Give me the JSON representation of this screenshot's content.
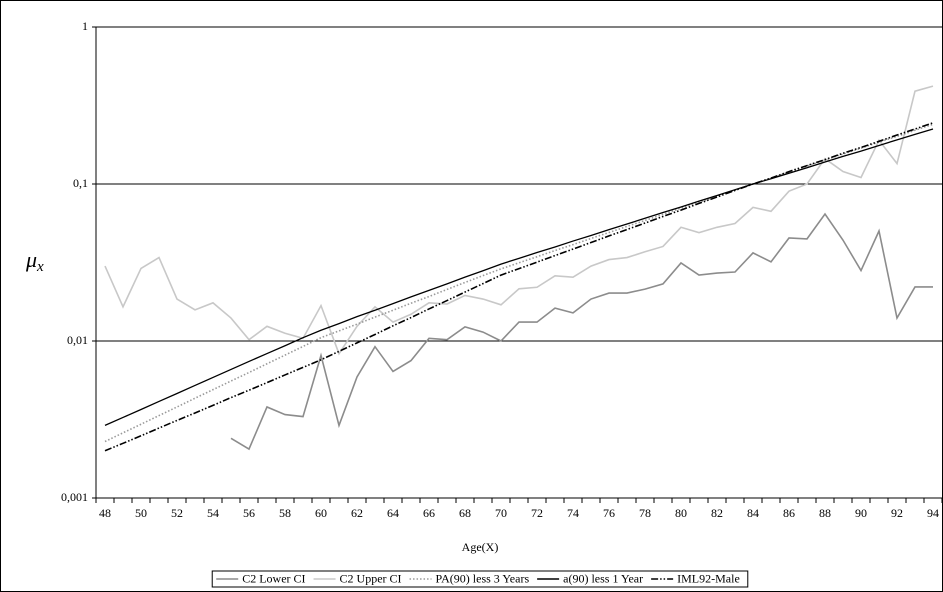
{
  "chart_data": {
    "type": "line",
    "xlabel": "Age(X)",
    "ylabel": "μ",
    "ylabel_subscript": "x",
    "categories": [
      48,
      null,
      50,
      null,
      52,
      null,
      54,
      null,
      56,
      null,
      58,
      null,
      60,
      null,
      62,
      null,
      64,
      null,
      66,
      null,
      68,
      null,
      70,
      null,
      72,
      null,
      74,
      null,
      76,
      null,
      78,
      null,
      80,
      null,
      82,
      null,
      84,
      null,
      86,
      null,
      88,
      null,
      90,
      null,
      92,
      null,
      94
    ],
    "log_y": true,
    "ylim": [
      0.001,
      1
    ],
    "yticks": [
      {
        "value": 0.001,
        "label": "0,001"
      },
      {
        "value": 0.01,
        "label": "0,01"
      },
      {
        "value": 0.1,
        "label": "0,1"
      },
      1
    ],
    "grid": true,
    "legend": "bottom",
    "series": [
      {
        "name": "C2 Lower CI",
        "color": "#8c8c8c",
        "dash": "solid",
        "values": [
          null,
          null,
          null,
          null,
          null,
          null,
          null,
          0.0024,
          0.00205,
          0.0038,
          0.0034,
          0.0033,
          0.0081,
          0.0029,
          0.0059,
          0.0092,
          0.0064,
          0.0075,
          0.0104,
          0.0102,
          0.0123,
          0.0114,
          0.01,
          0.0132,
          0.0132,
          0.0162,
          0.0151,
          0.0185,
          0.0202,
          0.0202,
          0.0214,
          0.0231,
          0.0314,
          0.0263,
          0.0271,
          0.0275,
          0.0364,
          0.0319,
          0.0453,
          0.0447,
          0.0644,
          0.0439,
          0.0281,
          0.0502,
          0.014,
          0.0221,
          0.0221
        ]
      },
      {
        "name": "C2 Upper CI",
        "color": "#c8c8c8",
        "dash": "solid",
        "values": [
          0.03,
          0.0165,
          0.029,
          0.034,
          0.0185,
          0.0158,
          0.0175,
          0.014,
          0.0102,
          0.0124,
          0.0112,
          0.0104,
          0.0168,
          0.0083,
          0.0124,
          0.0165,
          0.0132,
          0.0148,
          0.0175,
          0.0172,
          0.0195,
          0.0185,
          0.017,
          0.0215,
          0.022,
          0.026,
          0.0255,
          0.03,
          0.033,
          0.034,
          0.037,
          0.04,
          0.053,
          0.049,
          0.053,
          0.056,
          0.071,
          0.067,
          0.09,
          0.1,
          0.145,
          0.12,
          0.11,
          0.19,
          0.135,
          0.39,
          0.42
        ]
      },
      {
        "name": "PA(90) less 3 Years",
        "color": "#9a9a9a",
        "dash": "dotted",
        "values": [
          0.00229,
          0.0026,
          0.00295,
          0.00335,
          0.0038,
          0.00432,
          0.0049,
          0.00556,
          0.0063,
          0.00716,
          0.00813,
          0.00923,
          0.0105,
          0.0116,
          0.0128,
          0.0142,
          0.0157,
          0.0174,
          0.0192,
          0.0213,
          0.0236,
          0.0261,
          0.0288,
          0.0315,
          0.0344,
          0.0377,
          0.0411,
          0.045,
          0.0491,
          0.0537,
          0.0586,
          0.0641,
          0.0701,
          0.0766,
          0.0837,
          0.0914,
          0.1,
          0.109,
          0.119,
          0.13,
          0.142,
          0.155,
          0.169,
          0.185,
          0.201,
          0.22,
          0.24
        ]
      },
      {
        "name": "a(90) less 1 Year",
        "color": "#000000",
        "dash": "solid",
        "values": [
          0.0029,
          0.00326,
          0.00366,
          0.00412,
          0.00463,
          0.00521,
          0.00586,
          0.00659,
          0.00741,
          0.00832,
          0.00933,
          0.0105,
          0.0117,
          0.0129,
          0.0143,
          0.0157,
          0.0173,
          0.0191,
          0.021,
          0.0231,
          0.0255,
          0.028,
          0.0309,
          0.0336,
          0.0366,
          0.0397,
          0.0433,
          0.047,
          0.0512,
          0.0556,
          0.0605,
          0.0658,
          0.0714,
          0.0778,
          0.0845,
          0.092,
          0.1,
          0.108,
          0.117,
          0.127,
          0.138,
          0.15,
          0.162,
          0.176,
          0.191,
          0.207,
          0.224
        ]
      },
      {
        "name": "IML92-Male",
        "color": "#000000",
        "dash": "dash-dot",
        "values": [
          0.002,
          0.00223,
          0.00249,
          0.00279,
          0.00312,
          0.00348,
          0.00389,
          0.00436,
          0.00486,
          0.00543,
          0.00608,
          0.00679,
          0.00759,
          0.00859,
          0.00973,
          0.011,
          0.0125,
          0.0141,
          0.016,
          0.0181,
          0.0205,
          0.0232,
          0.0263,
          0.0289,
          0.0318,
          0.035,
          0.0385,
          0.0424,
          0.0467,
          0.0513,
          0.0564,
          0.0621,
          0.0682,
          0.0752,
          0.0826,
          0.091,
          0.1,
          0.109,
          0.12,
          0.131,
          0.143,
          0.157,
          0.171,
          0.187,
          0.205,
          0.224,
          0.245
        ]
      }
    ]
  }
}
